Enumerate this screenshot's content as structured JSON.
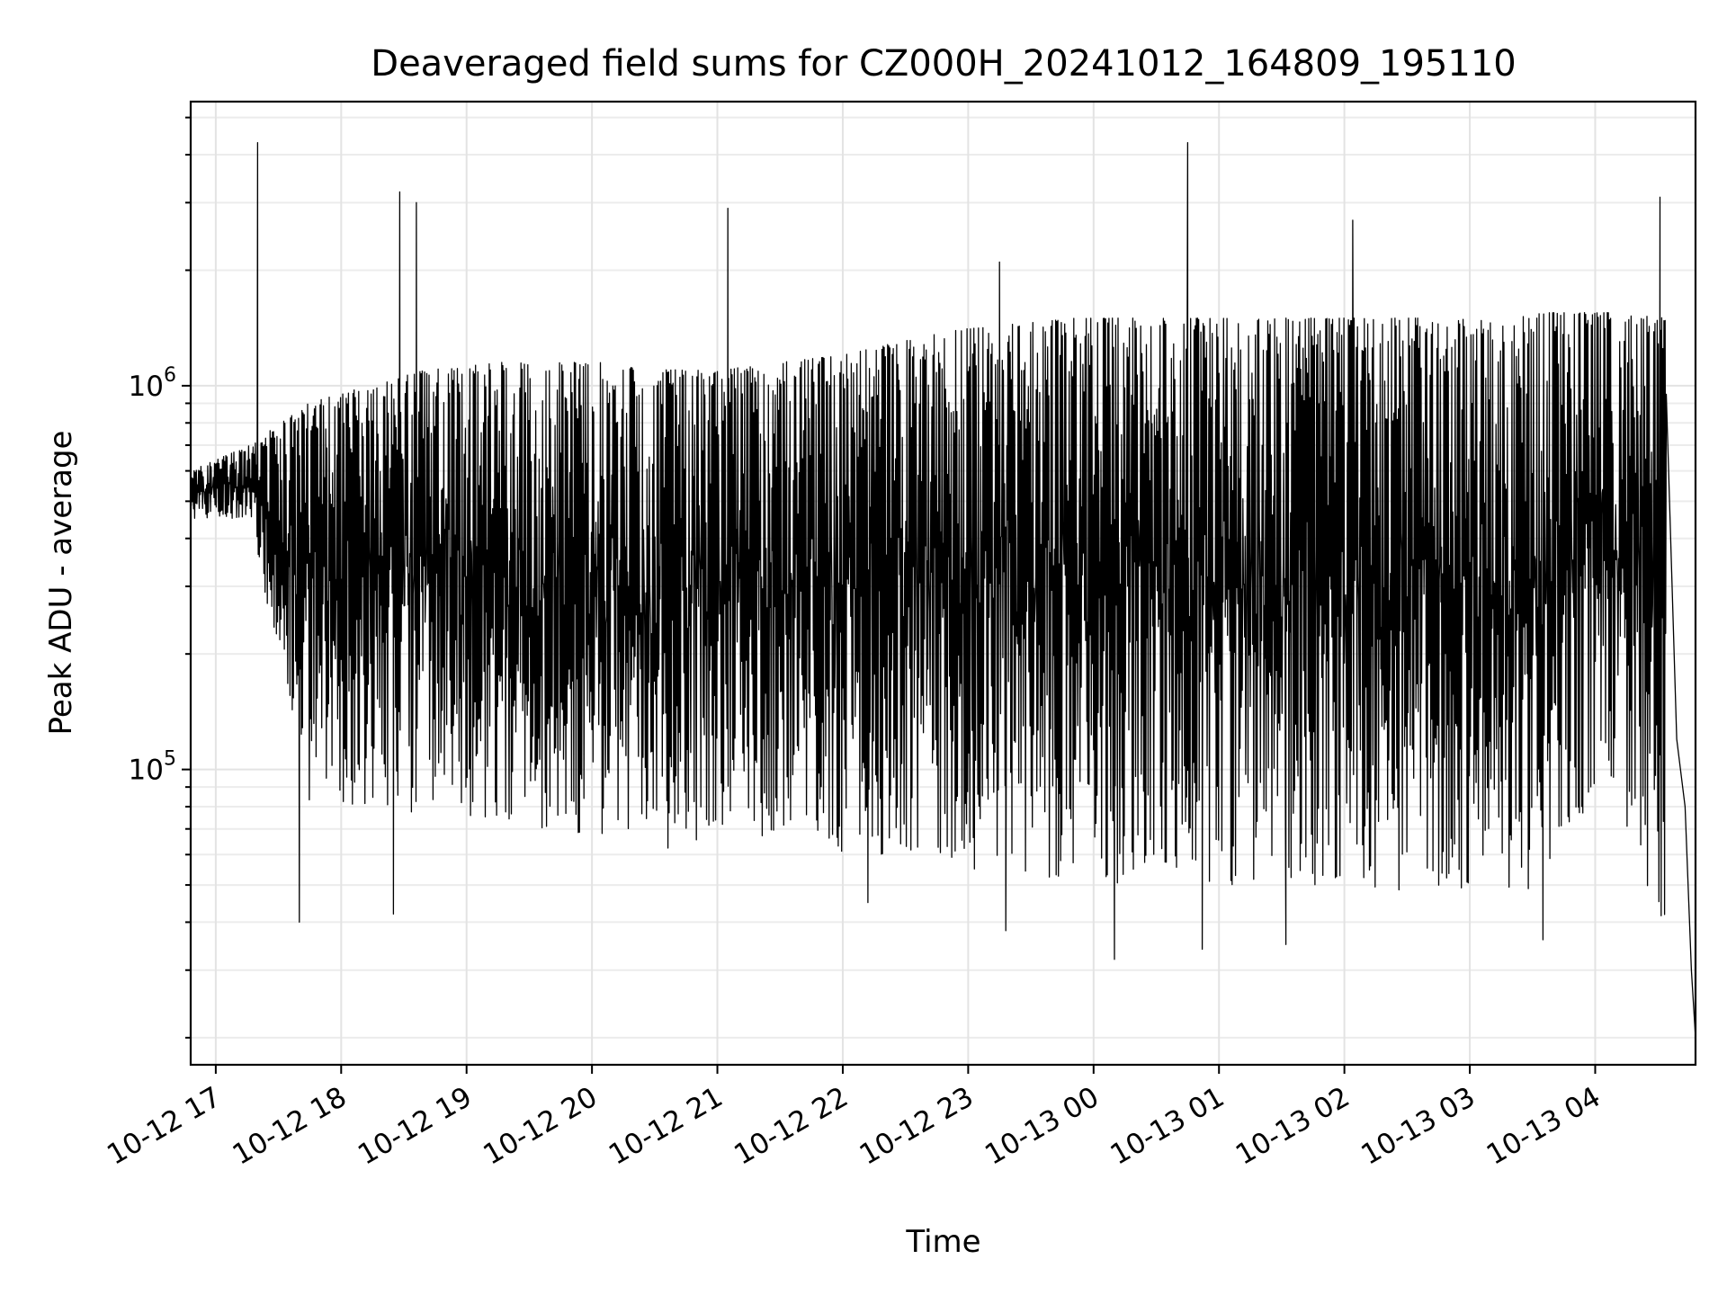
{
  "chart_data": {
    "type": "line",
    "title": "Deaveraged field sums for CZ000H_20241012_164809_195110",
    "xlabel": "Time",
    "ylabel": "Peak ADU - average",
    "yscale": "log",
    "grid": true,
    "x_start": "2024-10-12 16:48",
    "x_end": "2024-10-13 04:48",
    "xlim": [
      "2024-10-12 16:48",
      "2024-10-13 04:48"
    ],
    "ylim": [
      17000,
      5500000
    ],
    "x_ticks": [
      "10-12 17",
      "10-12 18",
      "10-12 19",
      "10-12 20",
      "10-12 21",
      "10-12 22",
      "10-12 23",
      "10-13 00",
      "10-13 01",
      "10-13 02",
      "10-13 03",
      "10-13 04"
    ],
    "y_ticks": [
      {
        "base": "10",
        "exp": "5",
        "value": 100000
      },
      {
        "base": "10",
        "exp": "6",
        "value": 1000000
      }
    ],
    "series": [
      {
        "color": "#000000",
        "envelope_upper": [
          600000,
          700000,
          900000,
          1000000,
          1100000,
          1150000,
          1150000,
          1150000,
          1100000,
          1100000,
          1150000,
          1200000,
          1300000,
          1400000,
          1450000,
          1500000,
          1500000,
          1500000,
          1500000,
          1500000,
          1500000,
          1500000,
          1500000,
          1550000,
          1550000,
          1500000
        ],
        "envelope_lower": [
          450000,
          450000,
          80000,
          80000,
          75000,
          70000,
          70000,
          65000,
          60000,
          70000,
          65000,
          60000,
          60000,
          55000,
          55000,
          50000,
          50000,
          50000,
          50000,
          50000,
          48000,
          48000,
          48000,
          48000,
          100000,
          30000
        ],
        "peaks": [
          {
            "t": "2024-10-12 17:20",
            "v": 4300000
          },
          {
            "t": "2024-10-12 18:28",
            "v": 3200000
          },
          {
            "t": "2024-10-12 18:36",
            "v": 3000000
          },
          {
            "t": "2024-10-12 21:05",
            "v": 2900000
          },
          {
            "t": "2024-10-12 23:15",
            "v": 2100000
          },
          {
            "t": "2024-10-13 00:45",
            "v": 4300000
          },
          {
            "t": "2024-10-13 02:04",
            "v": 2700000
          },
          {
            "t": "2024-10-13 04:31",
            "v": 3100000
          }
        ],
        "troughs": [
          {
            "t": "2024-10-12 17:40",
            "v": 40000
          },
          {
            "t": "2024-10-12 18:25",
            "v": 42000
          },
          {
            "t": "2024-10-12 22:12",
            "v": 45000
          },
          {
            "t": "2024-10-12 23:18",
            "v": 38000
          },
          {
            "t": "2024-10-13 00:10",
            "v": 32000
          },
          {
            "t": "2024-10-13 00:52",
            "v": 34000
          },
          {
            "t": "2024-10-13 01:32",
            "v": 35000
          },
          {
            "t": "2024-10-13 03:35",
            "v": 36000
          }
        ],
        "tail": [
          {
            "t": "2024-10-13 04:34",
            "v": 950000
          },
          {
            "t": "2024-10-13 04:39",
            "v": 120000
          },
          {
            "t": "2024-10-13 04:43",
            "v": 80000
          },
          {
            "t": "2024-10-13 04:46",
            "v": 30000
          },
          {
            "t": "2024-10-13 04:48",
            "v": 20000
          }
        ]
      }
    ]
  }
}
